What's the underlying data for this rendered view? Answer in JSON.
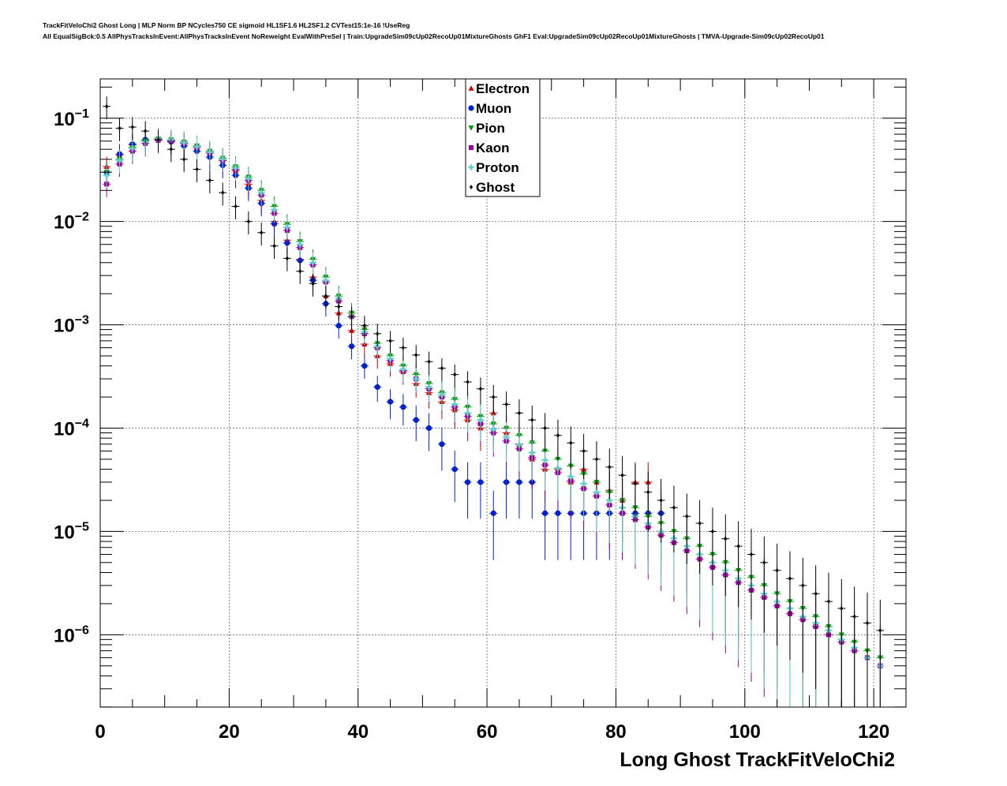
{
  "title_line1": "TrackFitVeloChi2 Ghost Long | MLP Norm BP NCycles750 CE sigmoid HL1SF1.6 HL2SF1.2 CVTest15:1e-16 !UseReg",
  "title_line2": "All EqualSigBck:0.5 AllPhysTracksInEvent:AllPhysTracksInEvent NoReweight EvalWithPreSel | Train:UpgradeSim09cUp02RecoUp01MixtureGhosts GhF1 Eval:UpgradeSim09cUp02RecoUp01MixtureGhosts | TMVA-Upgrade-Sim09cUp02RecoUp01",
  "chart_data": {
    "type": "scatter",
    "xlabel": "Long Ghost TrackFitVeloChi2",
    "ylabel": "",
    "xlim": [
      0,
      125
    ],
    "ylim_log10": [
      -6.7,
      -0.62
    ],
    "yscale": "log",
    "grid": true,
    "legend_position": "top-center",
    "x_ticks": [
      "0",
      "20",
      "40",
      "60",
      "80",
      "100",
      "120"
    ],
    "y_ticks": [
      {
        "base": "10",
        "exp": "−1",
        "log10": -1
      },
      {
        "base": "10",
        "exp": "−2",
        "log10": -2
      },
      {
        "base": "10",
        "exp": "−3",
        "log10": -3
      },
      {
        "base": "10",
        "exp": "−4",
        "log10": -4
      },
      {
        "base": "10",
        "exp": "−5",
        "log10": -5
      },
      {
        "base": "10",
        "exp": "−6",
        "log10": -6
      }
    ],
    "series": [
      {
        "name": "Electron",
        "color": "#cc0000",
        "marker": "triangle-up",
        "x": [
          1,
          3,
          5,
          7,
          9,
          11,
          13,
          15,
          17,
          19,
          21,
          23,
          25,
          27,
          29,
          31,
          33,
          35,
          37,
          39,
          41,
          43,
          45,
          47,
          49,
          51,
          53,
          55,
          57,
          59,
          61,
          63,
          65,
          67,
          69,
          71,
          73,
          75,
          77,
          79,
          81,
          83,
          85
        ],
        "y": [
          0.034,
          0.044,
          0.055,
          0.062,
          0.064,
          0.061,
          0.057,
          0.052,
          0.046,
          0.039,
          0.031,
          0.023,
          0.016,
          0.01,
          0.0066,
          0.0043,
          0.0029,
          0.0019,
          0.0013,
          0.00088,
          0.00065,
          0.0005,
          0.00042,
          0.00035,
          0.00027,
          0.00022,
          0.00018,
          0.00015,
          0.00012,
          0.0001,
          0.00014,
          9e-05,
          7e-05,
          5e-05,
          4e-05,
          4e-05,
          3e-05,
          4e-05,
          3e-05,
          2.5e-05,
          2e-05,
          3e-05,
          3e-05
        ]
      },
      {
        "name": "Muon",
        "color": "#0022cc",
        "marker": "circle",
        "x": [
          1,
          3,
          5,
          7,
          9,
          11,
          13,
          15,
          17,
          19,
          21,
          23,
          25,
          27,
          29,
          31,
          33,
          35,
          37,
          39,
          41,
          43,
          45,
          47,
          49,
          51,
          53,
          55,
          57,
          59,
          61,
          63,
          65,
          67,
          69,
          71,
          73,
          75,
          77,
          79,
          81,
          83,
          85,
          87
        ],
        "y": [
          0.03,
          0.045,
          0.056,
          0.062,
          0.062,
          0.059,
          0.054,
          0.048,
          0.042,
          0.035,
          0.028,
          0.021,
          0.015,
          0.0095,
          0.0062,
          0.0042,
          0.0027,
          0.0016,
          0.00098,
          0.00062,
          0.0004,
          0.00025,
          0.00018,
          0.00016,
          0.00012,
          0.0001,
          7e-05,
          4e-05,
          3e-05,
          3e-05,
          1.5e-05,
          3e-05,
          3e-05,
          3e-05,
          1.5e-05,
          1.5e-05,
          1.5e-05,
          1.5e-05,
          1.5e-05,
          1.5e-05,
          1.5e-05,
          1.5e-05,
          1.5e-05,
          1.5e-05
        ]
      },
      {
        "name": "Pion",
        "color": "#009900",
        "marker": "triangle-down",
        "x": [
          1,
          3,
          5,
          7,
          9,
          11,
          13,
          15,
          17,
          19,
          21,
          23,
          25,
          27,
          29,
          31,
          33,
          35,
          37,
          39,
          41,
          43,
          45,
          47,
          49,
          51,
          53,
          55,
          57,
          59,
          61,
          63,
          65,
          67,
          69,
          71,
          73,
          75,
          77,
          79,
          81,
          83,
          85,
          87,
          89,
          91,
          93,
          95,
          97,
          99,
          101,
          103,
          105,
          107,
          109,
          111,
          113,
          115,
          117,
          119,
          121
        ],
        "y": [
          0.03,
          0.04,
          0.052,
          0.06,
          0.063,
          0.062,
          0.059,
          0.054,
          0.048,
          0.041,
          0.034,
          0.027,
          0.02,
          0.014,
          0.0094,
          0.0064,
          0.0043,
          0.0029,
          0.0019,
          0.0013,
          0.0009,
          0.00066,
          0.0005,
          0.0004,
          0.00033,
          0.00027,
          0.00022,
          0.00019,
          0.00016,
          0.00013,
          0.00011,
          0.0001,
          8.5e-05,
          7.2e-05,
          6e-05,
          5e-05,
          4.3e-05,
          3.6e-05,
          3e-05,
          2.4e-05,
          2e-05,
          1.7e-05,
          1.4e-05,
          1.2e-05,
          1e-05,
          8.5e-06,
          7.2e-06,
          6e-06,
          5e-06,
          4.2e-06,
          3.6e-06,
          3e-06,
          2.5e-06,
          2.1e-06,
          1.8e-06,
          1.5e-06,
          1.2e-06,
          1e-06,
          8.5e-07,
          7e-07,
          6e-07
        ]
      },
      {
        "name": "Kaon",
        "color": "#990099",
        "marker": "square",
        "x": [
          1,
          3,
          5,
          7,
          9,
          11,
          13,
          15,
          17,
          19,
          21,
          23,
          25,
          27,
          29,
          31,
          33,
          35,
          37,
          39,
          41,
          43,
          45,
          47,
          49,
          51,
          53,
          55,
          57,
          59,
          61,
          63,
          65,
          67,
          69,
          71,
          73,
          75,
          77,
          79,
          81,
          83,
          85,
          87,
          89,
          91,
          93,
          95,
          97,
          99,
          101,
          103,
          105,
          107,
          109,
          111,
          113,
          115,
          117,
          119,
          121
        ],
        "y": [
          0.023,
          0.036,
          0.048,
          0.057,
          0.061,
          0.06,
          0.057,
          0.052,
          0.046,
          0.039,
          0.032,
          0.025,
          0.018,
          0.012,
          0.0082,
          0.0056,
          0.0038,
          0.0026,
          0.0017,
          0.0012,
          0.00082,
          0.0006,
          0.00045,
          0.00036,
          0.0003,
          0.00024,
          0.0002,
          0.00016,
          0.00013,
          0.00011,
          9e-05,
          7.5e-05,
          6.3e-05,
          5.2e-05,
          4.4e-05,
          3.7e-05,
          3.1e-05,
          2.6e-05,
          2.2e-05,
          1.8e-05,
          1.5e-05,
          1.3e-05,
          1.1e-05,
          9.2e-06,
          7.8e-06,
          6.5e-06,
          5.4e-06,
          4.5e-06,
          3.8e-06,
          3.2e-06,
          2.7e-06,
          2.3e-06,
          1.9e-06,
          1.6e-06,
          1.4e-06,
          1.2e-06,
          1e-06,
          8.5e-07,
          7e-07,
          6e-07,
          5e-07
        ]
      },
      {
        "name": "Proton",
        "color": "#66cccc",
        "marker": "cross",
        "x": [
          1,
          3,
          5,
          7,
          9,
          11,
          13,
          15,
          17,
          19,
          21,
          23,
          25,
          27,
          29,
          31,
          33,
          35,
          37,
          39,
          41,
          43,
          45,
          47,
          49,
          51,
          53,
          55,
          57,
          59,
          61,
          63,
          65,
          67,
          69,
          71,
          73,
          75,
          77,
          79,
          81,
          83,
          85,
          87,
          89,
          91,
          93,
          95,
          97,
          99,
          101,
          103,
          105,
          107,
          109,
          111,
          113,
          115,
          117,
          119,
          121
        ],
        "y": [
          0.028,
          0.039,
          0.051,
          0.059,
          0.063,
          0.062,
          0.058,
          0.053,
          0.047,
          0.04,
          0.033,
          0.026,
          0.019,
          0.013,
          0.0088,
          0.006,
          0.004,
          0.0027,
          0.0018,
          0.0012,
          0.00085,
          0.00062,
          0.00047,
          0.00037,
          0.0003,
          0.00025,
          0.00021,
          0.00017,
          0.00014,
          0.00012,
          9.8e-05,
          8.2e-05,
          6.9e-05,
          5.8e-05,
          4.9e-05,
          4.1e-05,
          3.4e-05,
          2.9e-05,
          2.4e-05,
          2e-05,
          1.7e-05,
          1.4e-05,
          1.2e-05,
          1e-05,
          8.6e-06,
          7.2e-06,
          6e-06,
          5e-06,
          4.2e-06,
          3.5e-06,
          3e-06,
          2.5e-06,
          2.1e-06,
          1.8e-06,
          1.5e-06,
          1.3e-06,
          1.1e-06,
          9e-07,
          7.5e-07,
          6e-07,
          5e-07
        ]
      },
      {
        "name": "Ghost",
        "color": "#000000",
        "marker": "diamond",
        "x": [
          1,
          3,
          5,
          7,
          9,
          11,
          13,
          15,
          17,
          19,
          21,
          23,
          25,
          27,
          29,
          31,
          33,
          35,
          37,
          39,
          41,
          43,
          45,
          47,
          49,
          51,
          53,
          55,
          57,
          59,
          61,
          63,
          65,
          67,
          69,
          71,
          73,
          75,
          77,
          79,
          81,
          83,
          85,
          87,
          89,
          91,
          93,
          95,
          97,
          99,
          101,
          103,
          105,
          107,
          109,
          111,
          113,
          115,
          117,
          119,
          121
        ],
        "y": [
          0.13,
          0.08,
          0.082,
          0.075,
          0.062,
          0.05,
          0.04,
          0.032,
          0.025,
          0.019,
          0.014,
          0.01,
          0.0078,
          0.0058,
          0.0044,
          0.0033,
          0.0025,
          0.0019,
          0.0015,
          0.0012,
          0.00098,
          0.00082,
          0.0007,
          0.0006,
          0.00051,
          0.00044,
          0.00038,
          0.00033,
          0.00028,
          0.00024,
          0.0002,
          0.00017,
          0.00014,
          0.00012,
          0.0001,
          8.5e-05,
          7.2e-05,
          6e-05,
          5e-05,
          4.2e-05,
          3.5e-05,
          2.9e-05,
          2.4e-05,
          2e-05,
          1.7e-05,
          1.4e-05,
          1.2e-05,
          1e-05,
          8.5e-06,
          7.2e-06,
          6e-06,
          5e-06,
          4.2e-06,
          3.5e-06,
          3e-06,
          2.5e-06,
          2.1e-06,
          1.8e-06,
          1.5e-06,
          1.3e-06,
          1.1e-06
        ]
      }
    ]
  }
}
